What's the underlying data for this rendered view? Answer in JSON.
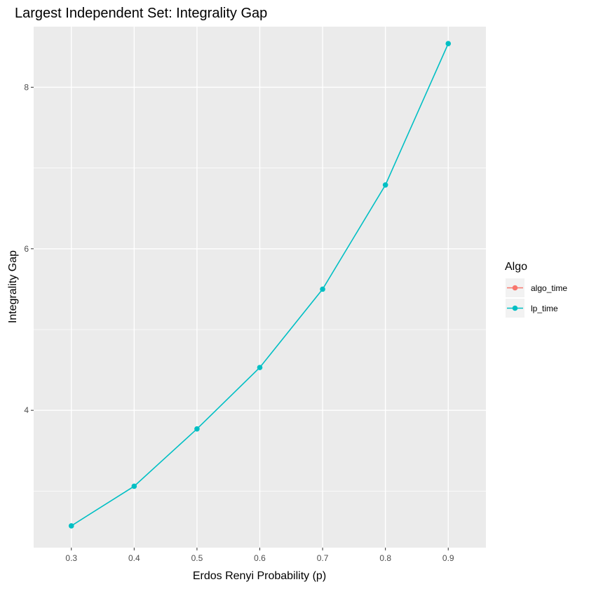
{
  "chart_data": {
    "type": "line",
    "title": "Largest Independent Set: Integrality Gap",
    "xlabel": "Erdos Renyi Probability (p)",
    "ylabel": "Integrality Gap",
    "xlim": [
      0.24,
      0.96
    ],
    "ylim": [
      2.3,
      8.75
    ],
    "x_ticks": [
      0.3,
      0.4,
      0.5,
      0.6,
      0.7,
      0.8,
      0.9
    ],
    "x_tick_labels": [
      "0.3",
      "0.4",
      "0.5",
      "0.6",
      "0.7",
      "0.8",
      "0.9"
    ],
    "y_ticks": [
      4,
      6,
      8
    ],
    "y_tick_labels": [
      "4",
      "6",
      "8"
    ],
    "y_minor_ticks": [
      3,
      5,
      7
    ],
    "grid": true,
    "legend": {
      "title": "Algo",
      "position": "right",
      "entries": [
        {
          "label": "algo_time",
          "color": "#F8766D"
        },
        {
          "label": "lp_time",
          "color": "#00BFC4"
        }
      ]
    },
    "series": [
      {
        "name": "lp_time",
        "color": "#00BFC4",
        "x": [
          0.3,
          0.4,
          0.5,
          0.6,
          0.7,
          0.8,
          0.9
        ],
        "y": [
          2.57,
          3.06,
          3.77,
          4.53,
          5.5,
          6.79,
          8.54
        ]
      }
    ],
    "colors": {
      "panel_background": "#EBEBEB",
      "grid_major": "#FFFFFF",
      "axis_text": "#4D4D4D",
      "legend_key_background": "#F2F2F2"
    }
  }
}
